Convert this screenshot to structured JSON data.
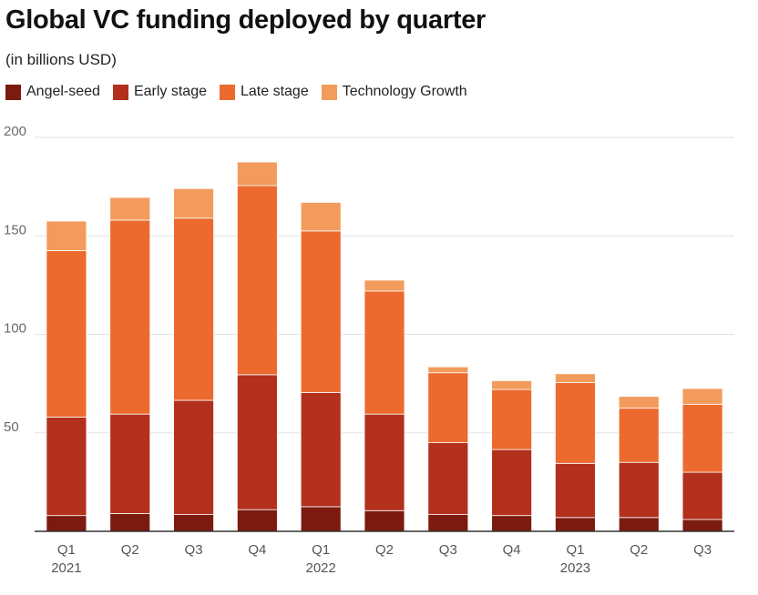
{
  "chart_data": {
    "type": "bar",
    "stacked": true,
    "title": "Global VC funding deployed by quarter",
    "subtitle": "(in billions USD)",
    "xlabel": "",
    "ylabel": "",
    "ylim": [
      0,
      200
    ],
    "yticks": [
      50,
      100,
      150,
      200
    ],
    "grid": true,
    "legend_position": "top-left",
    "categories": [
      "Q1",
      "Q2",
      "Q3",
      "Q4",
      "Q1",
      "Q2",
      "Q3",
      "Q4",
      "Q1",
      "Q2",
      "Q3"
    ],
    "years": [
      {
        "label": "2021",
        "index": 0
      },
      {
        "label": "2022",
        "index": 4
      },
      {
        "label": "2023",
        "index": 8
      }
    ],
    "series": [
      {
        "name": "Angel-seed",
        "color": "#7b1a0f",
        "values": [
          8,
          9,
          8.5,
          11,
          12.5,
          10.5,
          8.5,
          8,
          7,
          7,
          6
        ]
      },
      {
        "name": "Early stage",
        "color": "#b2301c",
        "values": [
          50,
          50.5,
          58,
          68.5,
          58,
          49,
          36.5,
          33.5,
          27.5,
          28,
          24
        ]
      },
      {
        "name": "Late stage",
        "color": "#ec6a2e",
        "values": [
          84.5,
          98.5,
          92.5,
          96,
          82,
          62.5,
          35.5,
          30.5,
          41,
          27.5,
          34.5
        ]
      },
      {
        "name": "Technology Growth",
        "color": "#f29b5c",
        "values": [
          15,
          11.5,
          15,
          12,
          14.5,
          5.5,
          3,
          4.5,
          4.5,
          6,
          8
        ]
      }
    ]
  }
}
